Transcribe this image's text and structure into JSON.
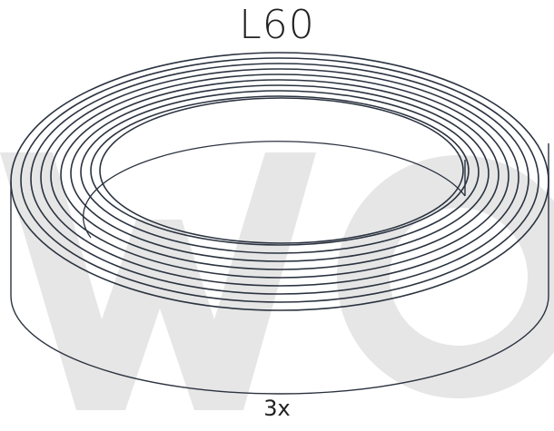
{
  "product": {
    "code": "L60",
    "quantity_label": "3x"
  },
  "colors": {
    "line": "#2b3340",
    "watermark": "#e6e6e6",
    "text": "#222222"
  },
  "watermark": {
    "text": "WO"
  },
  "coil": {
    "winding_count": 9
  }
}
